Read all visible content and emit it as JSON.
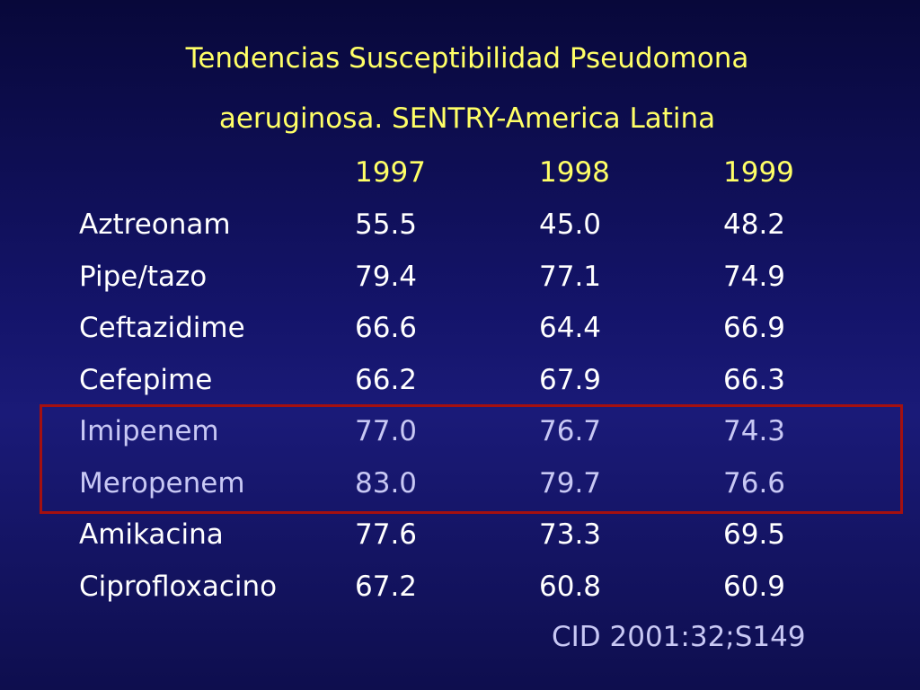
{
  "title": [
    "Tendencias Susceptibilidad Pseudomona",
    "aeruginosa. SENTRY-America Latina"
  ],
  "table": {
    "header": [
      "1997",
      "1998",
      "1999"
    ],
    "rows": [
      [
        "Aztreonam",
        "55.5",
        "45.0",
        "48.2"
      ],
      [
        "Pipe/tazo",
        "79.4",
        "77.1",
        "74.9"
      ],
      [
        "Ceftazidime",
        "66.6",
        "64.4",
        "66.9"
      ],
      [
        "Cefepime",
        "66.2",
        "67.9",
        "66.3"
      ],
      [
        "Imipenem",
        "77.0",
        "76.7",
        "74.3"
      ],
      [
        "Meropenem",
        "83.0",
        "79.7",
        "76.6"
      ],
      [
        "Amikacina",
        "77.6",
        "73.3",
        "69.5"
      ],
      [
        "Ciprofloxacino",
        "67.2",
        "60.8",
        "60.9"
      ]
    ]
  },
  "source": "CID 2001:32;S149"
}
